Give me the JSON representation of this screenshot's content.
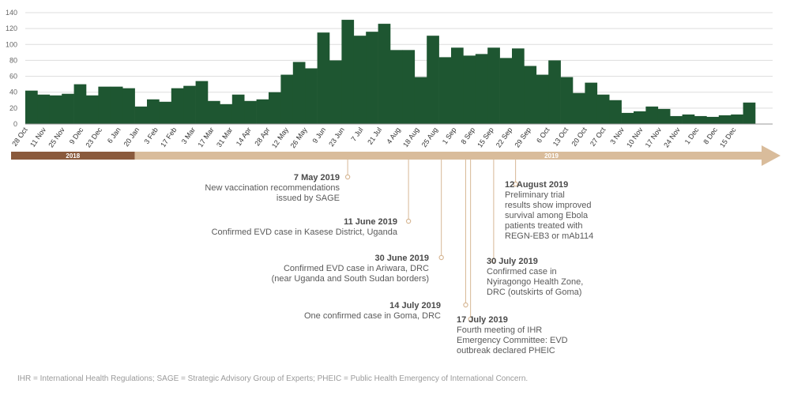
{
  "colors": {
    "bars": "#1e5631",
    "timeline_2018": "#8a5a3c",
    "timeline_2019": "#d9bc9b",
    "annotation_line": "#d7b896",
    "gridline": "#dddddd"
  },
  "chart_data": {
    "type": "bar",
    "title": "",
    "xlabel": "",
    "ylabel": "",
    "ylim": [
      0,
      140
    ],
    "yticks": [
      0,
      20,
      40,
      60,
      80,
      100,
      120,
      140
    ],
    "grid": true,
    "tick_labels": [
      "28 Oct",
      "11 Nov",
      "25 Nov",
      "9 Dec",
      "23 Dec",
      "6 Jan",
      "20 Jan",
      "3 Feb",
      "17 Feb",
      "3 Mar",
      "17 Mar",
      "31 Mar",
      "14 Apr",
      "28 Apr",
      "12 May",
      "26 May",
      "9 Jun",
      "23 Jun",
      "7 Jul",
      "21 Jul",
      "4 Aug",
      "18 Aug",
      "25 Aug",
      "1 Sep",
      "8 Sep",
      "15 Sep",
      "22 Sep",
      "29 Sep",
      "6 Oct",
      "13 Oct",
      "20 Oct",
      "27 Oct",
      "3 Nov",
      "10 Nov",
      "17 Nov",
      "24 Nov",
      "1 Dec",
      "8 Dec",
      "15 Dec"
    ],
    "values": [
      42,
      37,
      36,
      38,
      50,
      36,
      47,
      47,
      45,
      22,
      31,
      28,
      45,
      48,
      54,
      29,
      25,
      37,
      29,
      31,
      40,
      62,
      78,
      70,
      115,
      80,
      131,
      111,
      116,
      126,
      93,
      93,
      59,
      111,
      84,
      96,
      86,
      88,
      96,
      83,
      95,
      73,
      62,
      80,
      59,
      39,
      52,
      37,
      30,
      14,
      16,
      22,
      19,
      10,
      12,
      10,
      9,
      11,
      12,
      27
    ],
    "years": [
      {
        "label": "2018",
        "start_week": 0,
        "end_week": 9
      },
      {
        "label": "2019",
        "start_week": 9,
        "end_week": 60
      }
    ]
  },
  "annotations": [
    {
      "date": "7 May 2019",
      "text": [
        "New vaccination recommendations",
        "issued by SAGE"
      ],
      "week": 26.5
    },
    {
      "date": "11 June 2019",
      "text": [
        "Confirmed EVD case in Kasese District, Uganda"
      ],
      "week": 31.5
    },
    {
      "date": "30 June 2019",
      "text": [
        "Confirmed EVD case in Ariwara, DRC",
        "(near Uganda and South Sudan borders)"
      ],
      "week": 34.2
    },
    {
      "date": "14 July 2019",
      "text": [
        "One confirmed case in Goma, DRC"
      ],
      "week": 36.2
    },
    {
      "date": "17 July 2019",
      "text": [
        "Fourth meeting of IHR",
        "Emergency Committee: EVD",
        "outbreak declared PHEIC"
      ],
      "week": 36.6
    },
    {
      "date": "30 July 2019",
      "text": [
        "Confirmed case in",
        "Nyiragongo Health Zone,",
        "DRC (outskirts of Goma)"
      ],
      "week": 38.5
    },
    {
      "date": "12 August 2019",
      "text": [
        "Preliminary trial",
        "results show improved",
        "survival among Ebola",
        "patients treated with",
        "REGN-EB3 or mAb114"
      ],
      "week": 40.3
    }
  ],
  "footnote": "IHR = International Health Regulations; SAGE = Strategic Advisory Group of Experts; PHEIC = Public Health Emergency of International Concern."
}
